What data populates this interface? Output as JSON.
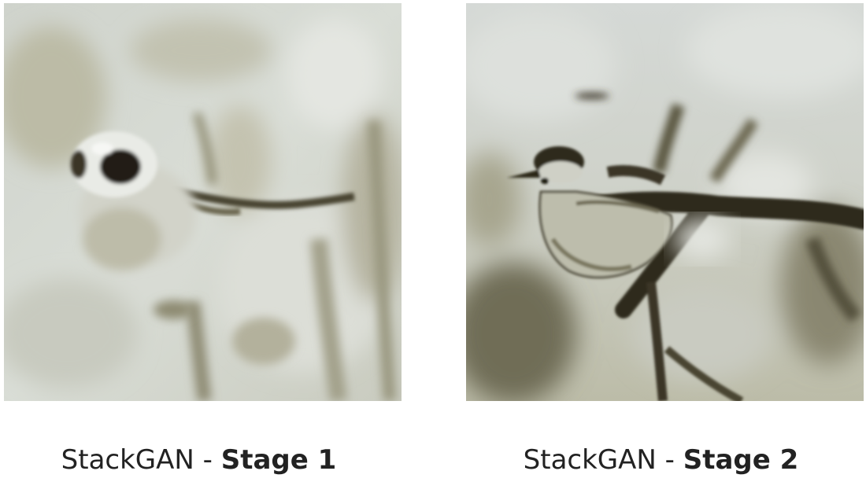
{
  "figures": [
    {
      "caption_prefix": "StackGAN - ",
      "caption_bold": "Stage 1"
    },
    {
      "caption_prefix": "StackGAN - ",
      "caption_bold": "Stage 2"
    }
  ],
  "colors": {
    "background": "#ffffff",
    "caption_text": "#222222",
    "image_light": "#d6dad3",
    "image_mid": "#a9a891",
    "image_dark": "#2e2a1c"
  }
}
